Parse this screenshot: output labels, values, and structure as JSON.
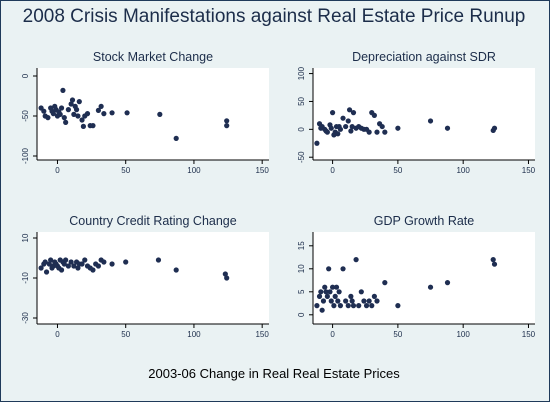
{
  "title": "2008 Crisis Manifestations against Real Estate Price Runup",
  "shared_xlabel": "2003-06 Change in Real Real Estate Prices",
  "colors": {
    "background": "#eaf2f3",
    "plot_area": "#ffffff",
    "marker": "#1f2e52",
    "text": "#1c2d4a"
  },
  "chart_data": [
    {
      "type": "scatter",
      "title": "Stock Market Change",
      "xlabel": "",
      "ylabel": "",
      "xlim": [
        -15,
        155
      ],
      "ylim": [
        -105,
        10
      ],
      "xticks": [
        0,
        50,
        100,
        150
      ],
      "yticks": [
        0,
        -50,
        -100
      ],
      "grid": false,
      "points": [
        [
          -12,
          -40
        ],
        [
          -10,
          -44
        ],
        [
          -9,
          -50
        ],
        [
          -7,
          -52
        ],
        [
          -5,
          -40
        ],
        [
          -4,
          -44
        ],
        [
          -3,
          -47
        ],
        [
          -2,
          -38
        ],
        [
          -1,
          -42
        ],
        [
          0,
          -50
        ],
        [
          1,
          -45
        ],
        [
          2,
          -48
        ],
        [
          3,
          -40
        ],
        [
          4,
          -18
        ],
        [
          5,
          -52
        ],
        [
          6,
          -58
        ],
        [
          8,
          -42
        ],
        [
          10,
          -35
        ],
        [
          11,
          -30
        ],
        [
          12,
          -48
        ],
        [
          13,
          -38
        ],
        [
          14,
          -42
        ],
        [
          15,
          -50
        ],
        [
          16,
          -32
        ],
        [
          18,
          -55
        ],
        [
          19,
          -63
        ],
        [
          20,
          -50
        ],
        [
          22,
          -47
        ],
        [
          24,
          -62
        ],
        [
          26,
          -62
        ],
        [
          30,
          -43
        ],
        [
          32,
          -38
        ],
        [
          34,
          -47
        ],
        [
          40,
          -46
        ],
        [
          51,
          -46
        ],
        [
          75,
          -48
        ],
        [
          87,
          -78
        ],
        [
          124,
          -56
        ],
        [
          124,
          -62
        ]
      ]
    },
    {
      "type": "scatter",
      "title": "Depreciation against SDR",
      "xlabel": "",
      "ylabel": "",
      "xlim": [
        -15,
        155
      ],
      "ylim": [
        -55,
        110
      ],
      "xticks": [
        0,
        50,
        100,
        150
      ],
      "yticks": [
        100,
        50,
        0,
        -50
      ],
      "grid": false,
      "points": [
        [
          -12,
          -25
        ],
        [
          -10,
          10
        ],
        [
          -9,
          2
        ],
        [
          -8,
          5
        ],
        [
          -6,
          0
        ],
        [
          -5,
          -3
        ],
        [
          -4,
          -5
        ],
        [
          -2,
          8
        ],
        [
          -1,
          2
        ],
        [
          0,
          30
        ],
        [
          1,
          -10
        ],
        [
          2,
          -5
        ],
        [
          3,
          5
        ],
        [
          4,
          -8
        ],
        [
          5,
          5
        ],
        [
          6,
          0
        ],
        [
          8,
          20
        ],
        [
          10,
          5
        ],
        [
          12,
          15
        ],
        [
          13,
          35
        ],
        [
          14,
          -3
        ],
        [
          15,
          5
        ],
        [
          16,
          30
        ],
        [
          18,
          2
        ],
        [
          20,
          5
        ],
        [
          22,
          2
        ],
        [
          24,
          0
        ],
        [
          26,
          0
        ],
        [
          28,
          -5
        ],
        [
          30,
          30
        ],
        [
          32,
          25
        ],
        [
          34,
          -5
        ],
        [
          36,
          10
        ],
        [
          38,
          5
        ],
        [
          40,
          -5
        ],
        [
          50,
          2
        ],
        [
          75,
          15
        ],
        [
          88,
          2
        ],
        [
          123,
          -2
        ],
        [
          124,
          2
        ]
      ]
    },
    {
      "type": "scatter",
      "title": "Country Credit Rating Change",
      "xlabel": "",
      "ylabel": "",
      "xlim": [
        -15,
        155
      ],
      "ylim": [
        -33,
        13
      ],
      "xticks": [
        0,
        50,
        100,
        150
      ],
      "yticks": [
        10,
        -10,
        -30
      ],
      "grid": false,
      "points": [
        [
          -12,
          -5
        ],
        [
          -10,
          -3
        ],
        [
          -9,
          -2
        ],
        [
          -8,
          -7
        ],
        [
          -6,
          -3
        ],
        [
          -5,
          -1
        ],
        [
          -4,
          -5
        ],
        [
          -3,
          -4
        ],
        [
          -2,
          -2
        ],
        [
          -1,
          -3
        ],
        [
          0,
          -4
        ],
        [
          1,
          -5
        ],
        [
          2,
          -1
        ],
        [
          3,
          -6
        ],
        [
          4,
          -2
        ],
        [
          5,
          -3
        ],
        [
          6,
          -1
        ],
        [
          8,
          -4
        ],
        [
          10,
          -2
        ],
        [
          12,
          -4
        ],
        [
          14,
          -2
        ],
        [
          15,
          -5
        ],
        [
          16,
          -3
        ],
        [
          18,
          -3
        ],
        [
          20,
          -1
        ],
        [
          22,
          -4
        ],
        [
          24,
          -5
        ],
        [
          26,
          -6
        ],
        [
          28,
          -3
        ],
        [
          30,
          -4
        ],
        [
          32,
          -1
        ],
        [
          34,
          -2
        ],
        [
          40,
          -3
        ],
        [
          50,
          -2
        ],
        [
          74,
          -1
        ],
        [
          87,
          -6
        ],
        [
          123,
          -8
        ],
        [
          124,
          -10
        ]
      ]
    },
    {
      "type": "scatter",
      "title": "GDP Growth Rate",
      "xlabel": "",
      "ylabel": "",
      "xlim": [
        -15,
        155
      ],
      "ylim": [
        -2,
        18
      ],
      "xticks": [
        0,
        50,
        100,
        150
      ],
      "yticks": [
        15,
        10,
        5,
        0
      ],
      "grid": false,
      "points": [
        [
          -12,
          2
        ],
        [
          -10,
          4
        ],
        [
          -9,
          5
        ],
        [
          -8,
          1
        ],
        [
          -7,
          3
        ],
        [
          -6,
          6
        ],
        [
          -5,
          5
        ],
        [
          -4,
          4
        ],
        [
          -3,
          10
        ],
        [
          -2,
          5
        ],
        [
          -1,
          3
        ],
        [
          0,
          6
        ],
        [
          1,
          2
        ],
        [
          2,
          4
        ],
        [
          3,
          6
        ],
        [
          4,
          3
        ],
        [
          5,
          5
        ],
        [
          6,
          2
        ],
        [
          8,
          10
        ],
        [
          10,
          3
        ],
        [
          12,
          2
        ],
        [
          14,
          4
        ],
        [
          15,
          3
        ],
        [
          16,
          2
        ],
        [
          18,
          12
        ],
        [
          20,
          2
        ],
        [
          22,
          5
        ],
        [
          24,
          3
        ],
        [
          26,
          2
        ],
        [
          28,
          3
        ],
        [
          30,
          2
        ],
        [
          32,
          4
        ],
        [
          34,
          3
        ],
        [
          40,
          7
        ],
        [
          50,
          2
        ],
        [
          75,
          6
        ],
        [
          88,
          7
        ],
        [
          123,
          12
        ],
        [
          124,
          11
        ]
      ]
    }
  ]
}
